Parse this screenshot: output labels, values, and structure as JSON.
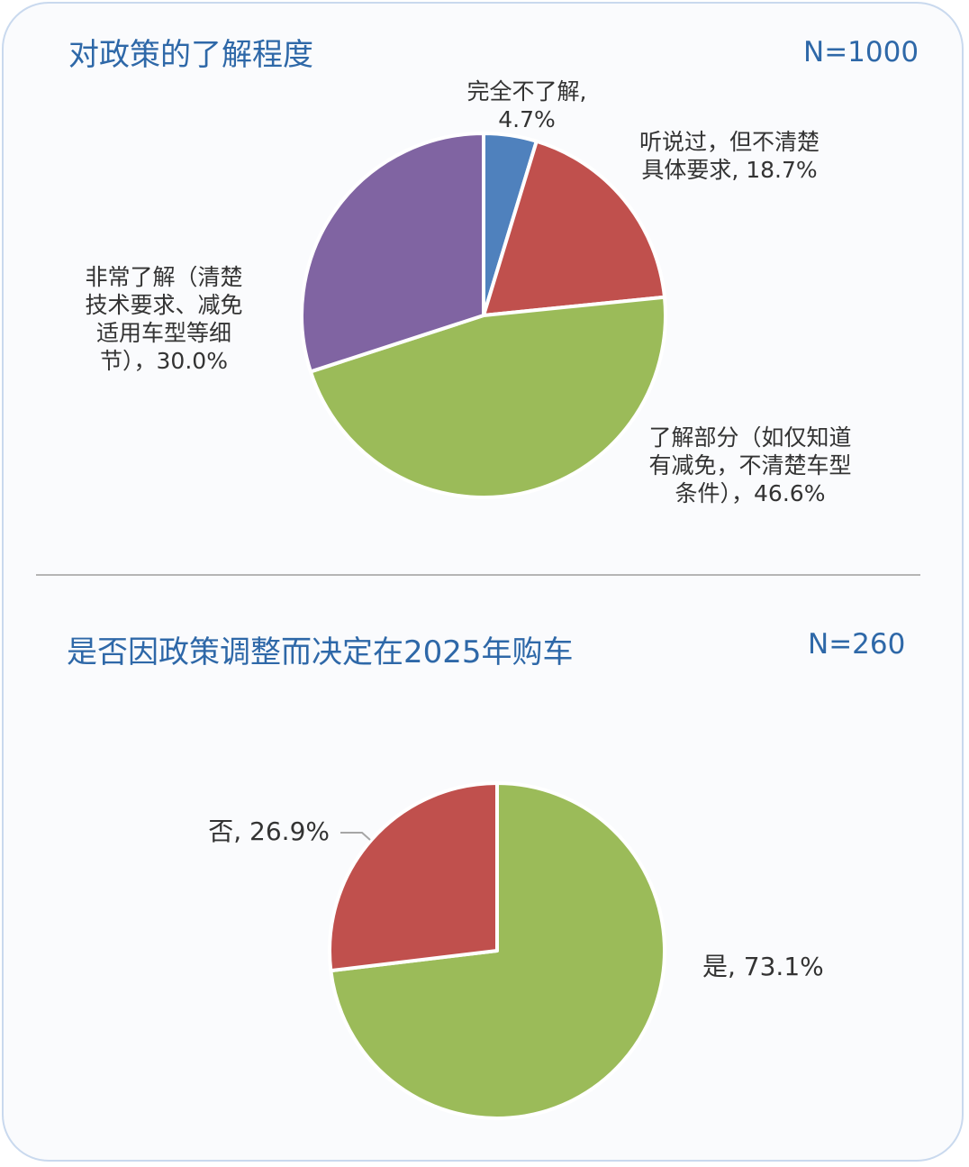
{
  "chart_data": [
    {
      "type": "pie",
      "title": "对政策的了解程度",
      "n_label": "N=1000",
      "slices": [
        {
          "lines": [
            "完全不了解,",
            "4.7%"
          ],
          "value": 4.7,
          "color": "#4f81bd"
        },
        {
          "lines": [
            "听说过，但不清楚",
            "具体要求, 18.7%"
          ],
          "value": 18.7,
          "color": "#c0504d"
        },
        {
          "lines": [
            "了解部分（如仅知道",
            "有减免，不清楚车型",
            "条件），46.6%"
          ],
          "value": 46.6,
          "color": "#9bbb59"
        },
        {
          "lines": [
            "非常了解（清楚",
            "技术要求、减免",
            "适用车型等细",
            "节），30.0%"
          ],
          "value": 30.0,
          "color": "#8064a2"
        }
      ]
    },
    {
      "type": "pie",
      "title": "是否因政策调整而决定在2025年购车",
      "n_label": "N=260",
      "slices": [
        {
          "lines": [
            "是, 73.1%"
          ],
          "value": 73.1,
          "color": "#9bbb59"
        },
        {
          "lines": [
            "否, 26.9%"
          ],
          "value": 26.9,
          "color": "#c0504d"
        }
      ]
    }
  ]
}
